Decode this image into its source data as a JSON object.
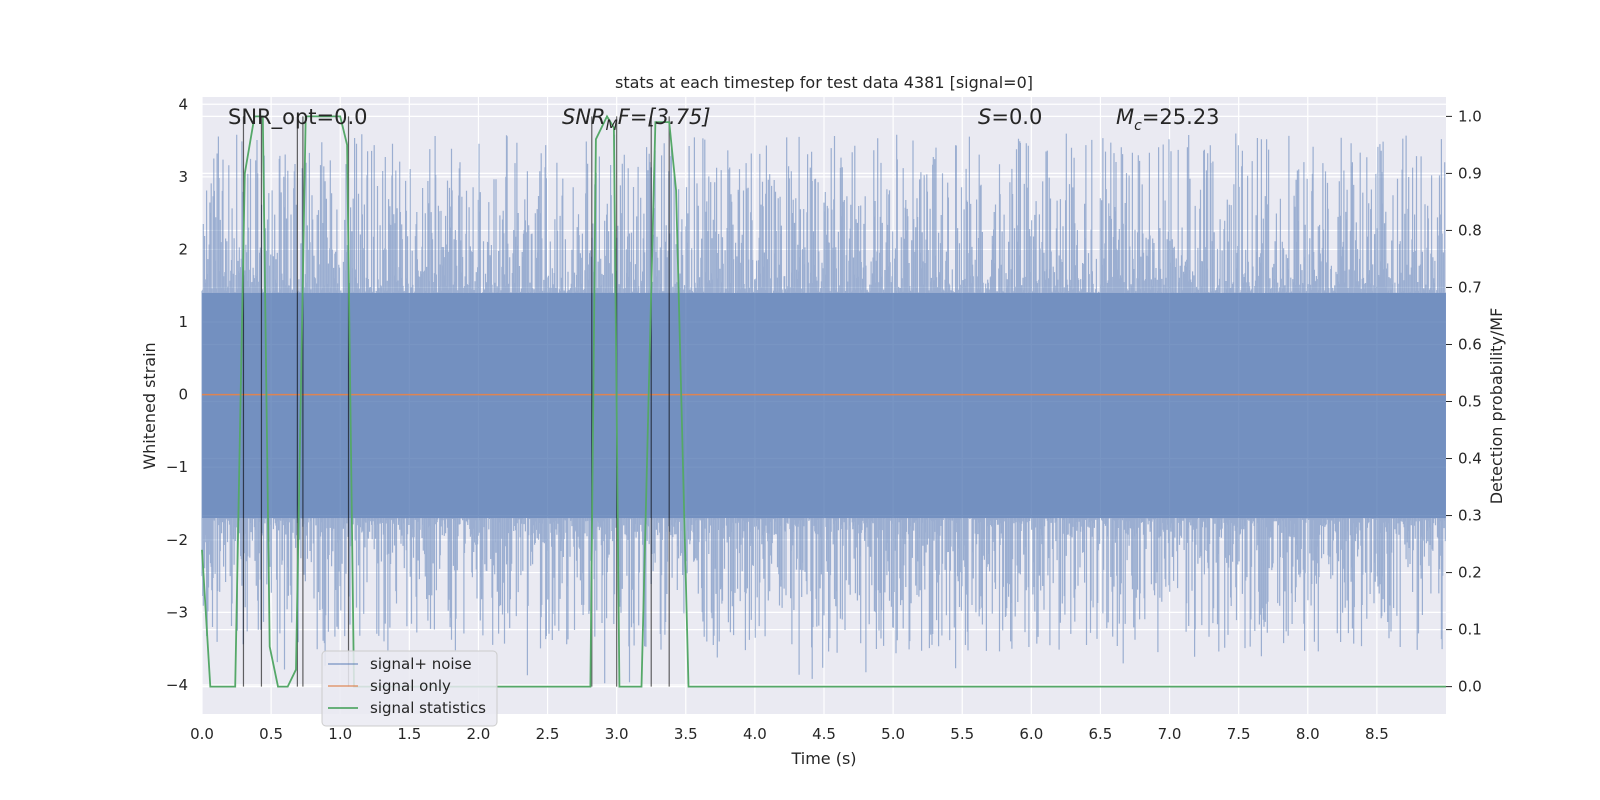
{
  "chart_data": {
    "type": "line",
    "title": "stats at each timestep for test data 4381 [signal=0]",
    "xlabel": "Time (s)",
    "ylabel_left": "Whitened strain",
    "ylabel_right": "Detection probability/MF",
    "xlim": [
      0.0,
      9.0
    ],
    "ylim_left": [
      -4.4,
      4.1
    ],
    "ylim_right": [
      -0.048,
      1.034
    ],
    "x_ticks": [
      "0.0",
      "0.5",
      "1.0",
      "1.5",
      "2.0",
      "2.5",
      "3.0",
      "3.5",
      "4.0",
      "4.5",
      "5.0",
      "5.5",
      "6.0",
      "6.5",
      "7.0",
      "7.5",
      "8.0",
      "8.5"
    ],
    "y_ticks_left": [
      "4",
      "3",
      "2",
      "1",
      "0",
      "−1",
      "−2",
      "−3",
      "−4"
    ],
    "y_ticks_right": [
      "1.0",
      "0.9",
      "0.8",
      "0.7",
      "0.6",
      "0.5",
      "0.4",
      "0.3",
      "0.2",
      "0.1",
      "0.0"
    ],
    "annotations": {
      "snr_opt": "SNR_opt=0.0",
      "snr_mf_sym": "SNR",
      "snr_mf_sub": "M",
      "snr_mf_rest": "F=[3.75]",
      "s_sym": "S",
      "s_rest": "=0.0",
      "mc_sym": "M",
      "mc_sub": "c",
      "mc_rest": "=25.23"
    },
    "noise_envelope": {
      "description_values": "signal + noise whitened strain, approx amplitude range",
      "upper_typical": 1.4,
      "lower_typical": -1.7,
      "upper_peak": 3.6,
      "lower_peak": -4.0
    },
    "signal_only": {
      "value": 0.0
    },
    "series": [
      {
        "name": "signal statistics",
        "axis": "right",
        "x": [
          0.0,
          0.06,
          0.1,
          0.24,
          0.31,
          0.38,
          0.44,
          0.49,
          0.55,
          0.62,
          0.68,
          0.75,
          0.8,
          1.0,
          1.05,
          1.1,
          1.15,
          1.3,
          2.5,
          2.81,
          2.85,
          2.93,
          2.98,
          3.02,
          3.07,
          3.18,
          3.28,
          3.32,
          3.38,
          3.43,
          3.52,
          3.56,
          3.6,
          4.0,
          9.0
        ],
        "values": [
          0.24,
          0.0,
          0.0,
          0.0,
          0.9,
          1.0,
          1.0,
          0.07,
          0.0,
          0.0,
          0.03,
          1.0,
          1.0,
          1.0,
          0.95,
          0.0,
          0.0,
          0.0,
          0.0,
          0.0,
          0.96,
          1.0,
          0.98,
          0.0,
          0.0,
          0.0,
          0.99,
          0.99,
          0.99,
          0.87,
          0.0,
          0.0,
          0.0,
          0.0,
          0.0
        ]
      }
    ],
    "vertical_markers_x": [
      0.3,
      0.43,
      0.69,
      0.73,
      1.06,
      2.82,
      3.0,
      3.25,
      3.38
    ],
    "legend": {
      "position": "lower-left",
      "entries": [
        {
          "label": "signal+ noise",
          "color": "#4c72b0"
        },
        {
          "label": "signal only",
          "color": "#dd8452"
        },
        {
          "label": "signal statistics",
          "color": "#55a868"
        }
      ]
    },
    "colors": {
      "background": "#eaeaf2",
      "grid": "#ffffff",
      "noise": "#4c72b0",
      "signal_only": "#dd8452",
      "statistics": "#55a868",
      "markers": "#000000"
    }
  }
}
